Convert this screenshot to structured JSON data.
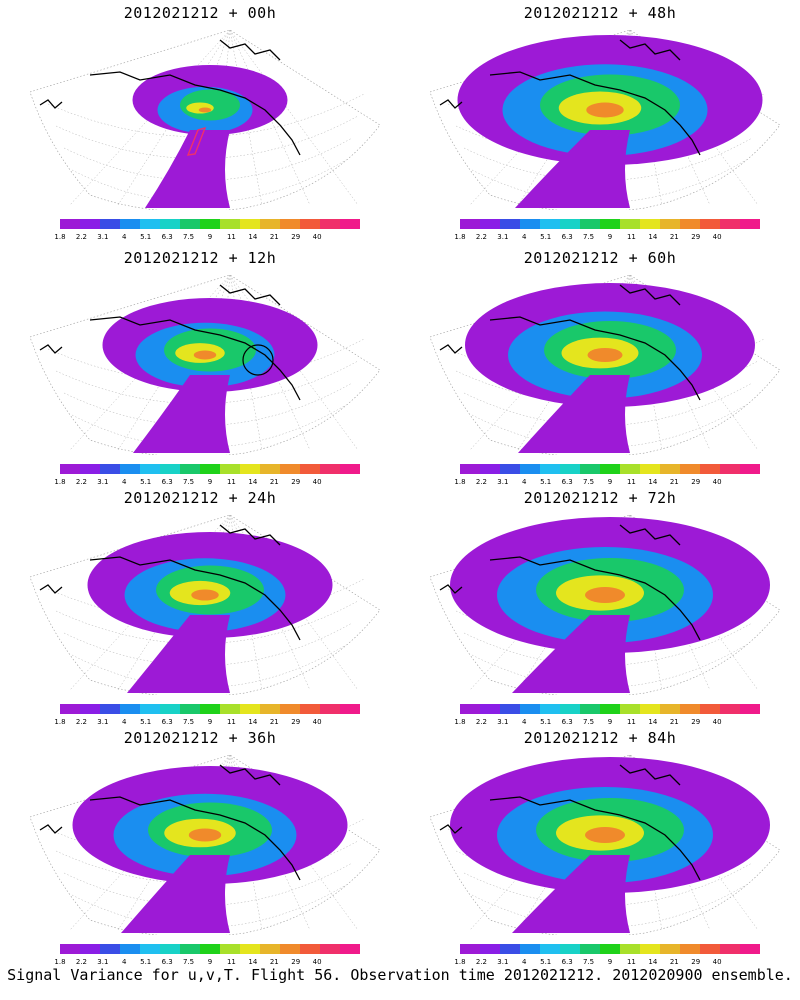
{
  "panels": [
    {
      "title": "2012021212 + 00h",
      "intensity": 0.25,
      "marker": "flight-track"
    },
    {
      "title": "2012021212 + 48h",
      "intensity": 0.75,
      "marker": ""
    },
    {
      "title": "2012021212 + 12h",
      "intensity": 0.45,
      "marker": "circle"
    },
    {
      "title": "2012021212 + 60h",
      "intensity": 0.7,
      "marker": ""
    },
    {
      "title": "2012021212 + 24h",
      "intensity": 0.55,
      "marker": ""
    },
    {
      "title": "2012021212 + 72h",
      "intensity": 0.8,
      "marker": ""
    },
    {
      "title": "2012021212 + 36h",
      "intensity": 0.65,
      "marker": ""
    },
    {
      "title": "2012021212 + 84h",
      "intensity": 0.8,
      "marker": ""
    }
  ],
  "colorbar": {
    "labels": [
      "1.8",
      "2.2",
      "3.1",
      "4",
      "5.1",
      "6.3",
      "7.5",
      "9",
      "11",
      "14",
      "21",
      "29",
      "40"
    ],
    "colors": [
      "#9d1ad6",
      "#8a1ee6",
      "#3a4de6",
      "#1a8ef0",
      "#1fbff0",
      "#18d2c7",
      "#19c86a",
      "#1fd21a",
      "#a8e02a",
      "#e4e51e",
      "#e7b52a",
      "#f08a2b",
      "#f25a3a",
      "#f0306a",
      "#f01a8a"
    ]
  },
  "footer": "Signal Variance for u,v,T. Flight 56. Observation time 2012021212. 2012020900 ensemble."
}
